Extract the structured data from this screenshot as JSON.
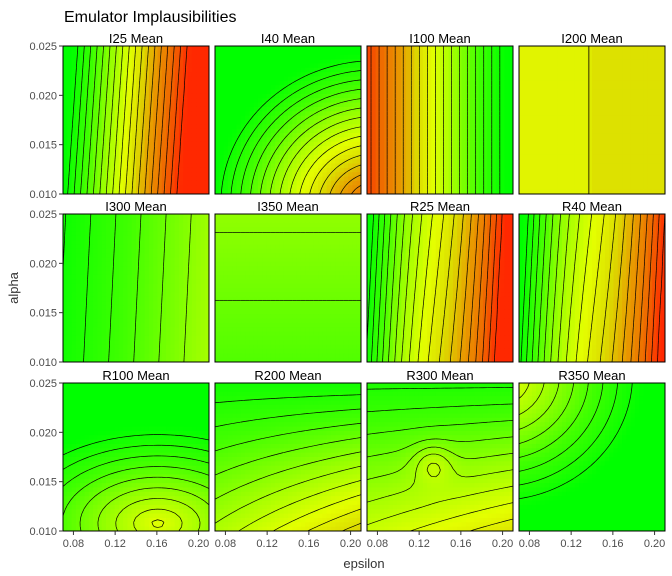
{
  "chart_data": {
    "type": "contour",
    "title": "Emulator Implausibilities",
    "xlabel": "epsilon",
    "ylabel": "alpha",
    "xlim": [
      0.07,
      0.21
    ],
    "ylim": [
      0.01,
      0.025
    ],
    "xticks": [
      0.08,
      0.12,
      0.16,
      0.2
    ],
    "xtick_labels": [
      "0.08",
      "0.12",
      "0.16",
      "0.20"
    ],
    "yticks": [
      0.01,
      0.015,
      0.02,
      0.025
    ],
    "ytick_labels": [
      "0.010",
      "0.015",
      "0.020",
      "0.025"
    ],
    "grid": false,
    "layout": {
      "rows": 3,
      "cols": 4
    },
    "colors": {
      "low": "#00ff00",
      "high": "#ff2800",
      "panel_border": "#000000",
      "contour_line": "#000000"
    },
    "panels": [
      {
        "title": "I25 Mean",
        "kind": "a",
        "params": [
          0.0,
          1.25,
          0.07,
          5.5,
          0.0
        ]
      },
      {
        "title": "I40 Mean",
        "kind": "b",
        "params": [
          0.92,
          1.1,
          0.12
        ]
      },
      {
        "title": "I100 Mean",
        "kind": "c",
        "params": [
          0.95,
          1.0,
          0.05
        ]
      },
      {
        "title": "I200 Mean",
        "kind": "step",
        "params": [
          0.137,
          0.3,
          0.33
        ]
      },
      {
        "title": "I300 Mean",
        "kind": "a",
        "params": [
          0.05,
          0.32,
          0.05,
          8.0,
          0.0
        ]
      },
      {
        "title": "I350 Mean",
        "kind": "h",
        "params": [
          0.21
        ]
      },
      {
        "title": "R25 Mean",
        "kind": "a",
        "params": [
          0.05,
          1.1,
          0.07,
          6.5,
          0.12
        ]
      },
      {
        "title": "R40 Mean",
        "kind": "a",
        "params": [
          0.02,
          1.05,
          0.07,
          6.0,
          0.14
        ]
      },
      {
        "title": "R100 Mean",
        "kind": "d",
        "params": [
          0.05,
          0.45
        ]
      },
      {
        "title": "R200 Mean",
        "kind": "e",
        "params": [
          0.05,
          0.45
        ]
      },
      {
        "title": "R300 Mean",
        "kind": "f",
        "params": [
          0.08,
          0.45
        ]
      },
      {
        "title": "R350 Mean",
        "kind": "g",
        "params": [
          0.0,
          0.55
        ]
      }
    ]
  }
}
